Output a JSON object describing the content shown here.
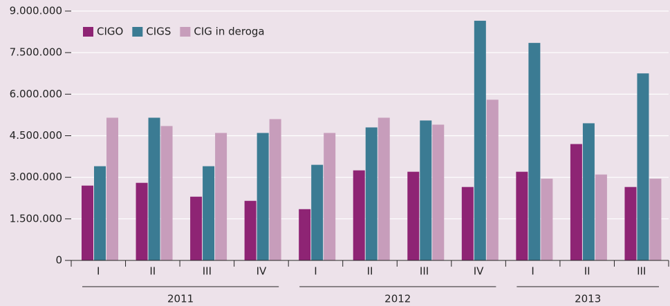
{
  "chart_data": {
    "type": "bar",
    "groups": [
      {
        "label": "2011",
        "categories": [
          "I",
          "II",
          "III",
          "IV"
        ]
      },
      {
        "label": "2012",
        "categories": [
          "I",
          "II",
          "III",
          "IV"
        ]
      },
      {
        "label": "2013",
        "categories": [
          "I",
          "II",
          "III"
        ]
      }
    ],
    "series": [
      {
        "name": "CIGO",
        "color": "#8e2474",
        "values": [
          2700000,
          2800000,
          2300000,
          2150000,
          1850000,
          3250000,
          3200000,
          2650000,
          3200000,
          4200000,
          2650000
        ]
      },
      {
        "name": "CIGS",
        "color": "#3b7b93",
        "values": [
          3400000,
          5150000,
          3400000,
          4600000,
          3450000,
          4800000,
          5050000,
          8650000,
          7850000,
          4950000,
          6750000
        ]
      },
      {
        "name": "CIG in deroga",
        "color": "#c79dbb",
        "values": [
          5150000,
          4850000,
          4600000,
          5100000,
          4600000,
          5150000,
          4900000,
          5800000,
          2950000,
          3100000,
          2950000
        ]
      }
    ],
    "ylim": [
      0,
      9000000
    ],
    "yticks": [
      0,
      {
        "value": 1500000,
        "label": "1.500.000"
      },
      {
        "value": 3000000,
        "label": "3.000.000"
      },
      {
        "value": 4500000,
        "label": "4.500.000"
      },
      {
        "value": 6000000,
        "label": "6.000.000"
      },
      {
        "value": 7500000,
        "label": "7.500.000"
      },
      {
        "value": 9000000,
        "label": "9.000.000"
      }
    ],
    "grid": true,
    "legend": "top-left"
  }
}
